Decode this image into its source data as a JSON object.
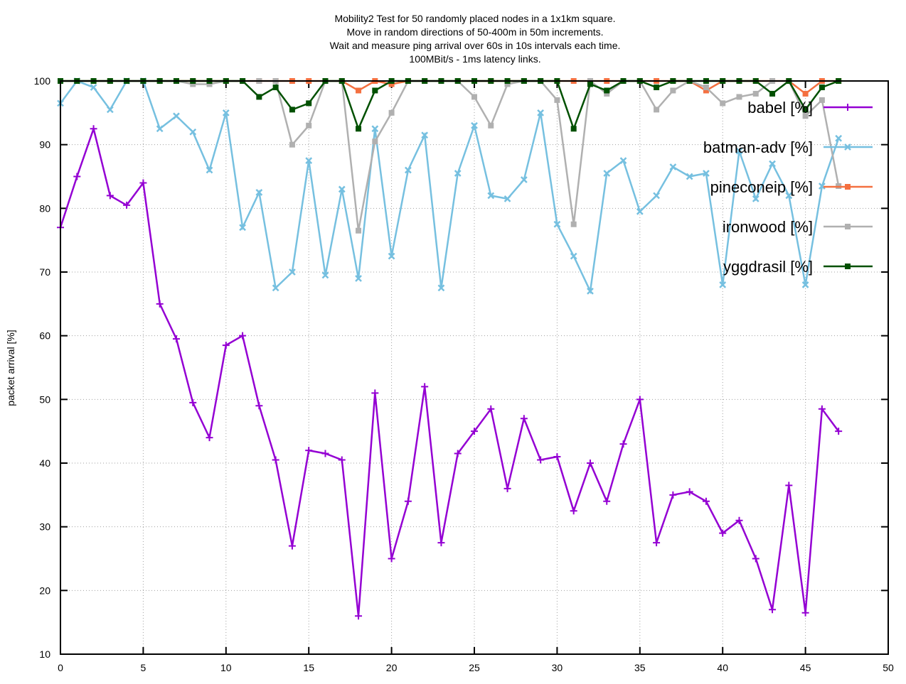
{
  "chart_data": {
    "type": "line",
    "title_lines": [
      "Mobility2 Test for 50 randomly placed nodes in a 1x1km square.",
      "Move in random directions of 50-400m in 50m increments.",
      "Wait and measure ping arrival over 60s in 10s intervals each time.",
      "100MBit/s - 1ms latency links."
    ],
    "ylabel": "packet arrival [%]",
    "xlabel": "",
    "xlim": [
      0,
      50
    ],
    "ylim": [
      10,
      100
    ],
    "xticks": [
      0,
      5,
      10,
      15,
      20,
      25,
      30,
      35,
      40,
      45,
      50
    ],
    "yticks": [
      10,
      20,
      30,
      40,
      50,
      60,
      70,
      80,
      90,
      100
    ],
    "grid": true,
    "legend_position": "top-right",
    "series": [
      {
        "name": "babel [%]",
        "color": "#9400d3",
        "marker": "plus",
        "values": [
          77,
          85,
          92.5,
          82,
          80.5,
          84,
          65,
          59.5,
          49.5,
          44,
          58.5,
          60,
          49,
          40.5,
          27,
          42,
          41.5,
          40.5,
          16,
          51,
          25,
          34,
          52,
          27.5,
          41.5,
          45,
          48.5,
          36,
          47,
          40.5,
          41,
          32.5,
          40,
          34,
          43,
          50,
          27.5,
          35,
          35.5,
          34,
          29,
          31,
          25,
          17,
          36.5,
          16.5,
          48.5,
          45
        ]
      },
      {
        "name": "batman-adv [%]",
        "color": "#76c0e0",
        "marker": "cross",
        "values": [
          96.5,
          100,
          99,
          95.5,
          100,
          100,
          92.5,
          94.5,
          92,
          86,
          95,
          77,
          82.5,
          67.5,
          70,
          87.5,
          69.5,
          83,
          69,
          92.5,
          72.5,
          86,
          91.5,
          67.5,
          85.5,
          93,
          82,
          81.5,
          84.5,
          95,
          77.5,
          72.5,
          67,
          85.5,
          87.5,
          79.5,
          82,
          86.5,
          85,
          85.5,
          68,
          89,
          81.5,
          87,
          82,
          68,
          83.5,
          91
        ]
      },
      {
        "name": "pineconeip [%]",
        "color": "#f47040",
        "marker": "square",
        "values": [
          100,
          100,
          100,
          100,
          100,
          100,
          100,
          100,
          100,
          100,
          100,
          100,
          100,
          100,
          100,
          100,
          100,
          100,
          98.5,
          100,
          99.5,
          100,
          100,
          100,
          100,
          100,
          100,
          100,
          100,
          100,
          100,
          100,
          100,
          100,
          100,
          100,
          100,
          100,
          100,
          98.5,
          100,
          100,
          100,
          100,
          100,
          98,
          100,
          100
        ]
      },
      {
        "name": "ironwood [%]",
        "color": "#b0b0b0",
        "marker": "square",
        "values": [
          100,
          100,
          100,
          100,
          100,
          100,
          100,
          100,
          99.5,
          99.5,
          100,
          100,
          100,
          100,
          90,
          93,
          100,
          100,
          76.5,
          90.5,
          95,
          100,
          100,
          100,
          100,
          97.5,
          93,
          99.5,
          100,
          100,
          97,
          77.5,
          100,
          98,
          100,
          100,
          95.5,
          98.5,
          100,
          99,
          96.5,
          97.5,
          98,
          100,
          100,
          94.5,
          97,
          83.5
        ]
      },
      {
        "name": "yggdrasil [%]",
        "color": "#005000",
        "marker": "square",
        "values": [
          100,
          100,
          100,
          100,
          100,
          100,
          100,
          100,
          100,
          100,
          100,
          100,
          97.5,
          99,
          95.5,
          96.5,
          100,
          100,
          92.5,
          98.5,
          100,
          100,
          100,
          100,
          100,
          100,
          100,
          100,
          100,
          100,
          100,
          92.5,
          99.5,
          98.5,
          100,
          100,
          99,
          100,
          100,
          100,
          100,
          100,
          100,
          98,
          100,
          95.5,
          99,
          100
        ]
      }
    ]
  }
}
